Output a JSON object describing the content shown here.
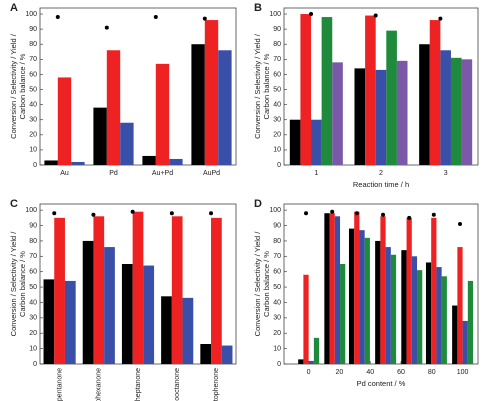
{
  "chart_data": [
    {
      "type": "bar",
      "label": "A",
      "ylabel": [
        "Conversion / Selectivity / Yield /",
        "Carbon balance / %"
      ],
      "categories": [
        "Au",
        "Pd",
        "Au+Pd",
        "AuPd"
      ],
      "series": [
        {
          "color": "#000000",
          "values": [
            3,
            38,
            6,
            80
          ]
        },
        {
          "color": "#ee2222",
          "values": [
            58,
            76,
            67,
            96
          ]
        },
        {
          "color": "#3a4fa8",
          "values": [
            2,
            28,
            4,
            76
          ]
        },
        {
          "color": "#000000",
          "marker": "dot",
          "values": [
            98,
            91,
            98,
            97
          ]
        }
      ],
      "ylim": [
        0,
        104
      ],
      "yticks": [
        0,
        10,
        20,
        30,
        40,
        50,
        60,
        70,
        80,
        90,
        100
      ]
    },
    {
      "type": "bar",
      "label": "B",
      "ylabel": [
        "Conversion / Selectivity / Yield /",
        "Carbon balance / %"
      ],
      "xlabel": "Reaction time / h",
      "categories": [
        "1",
        "2",
        "3"
      ],
      "series": [
        {
          "color": "#000000",
          "values": [
            30,
            64,
            80
          ]
        },
        {
          "color": "#ee2222",
          "values": [
            100,
            99,
            96
          ]
        },
        {
          "color": "#3a4fa8",
          "values": [
            30,
            63,
            76
          ]
        },
        {
          "color": "#1f8a3c",
          "values": [
            98,
            89,
            71
          ]
        },
        {
          "color": "#7a5aa8",
          "values": [
            68,
            69,
            70
          ]
        },
        {
          "color": "#000000",
          "marker": "dot",
          "values": [
            100,
            99,
            97
          ]
        }
      ],
      "ylim": [
        0,
        104
      ],
      "yticks": [
        0,
        10,
        20,
        30,
        40,
        50,
        60,
        70,
        80,
        90,
        100
      ]
    },
    {
      "type": "bar",
      "label": "C",
      "ylabel": [
        "Conversion / Selectivity / Yield /",
        "Carbon balance / %"
      ],
      "categories": [
        "Cyclopentanone",
        "Cyclohexanone",
        "Cycloheptanone",
        "Cyclooctanone",
        "Acetophenone"
      ],
      "rotate_labels": true,
      "series": [
        {
          "color": "#000000",
          "values": [
            55,
            80,
            65,
            44,
            13
          ]
        },
        {
          "color": "#ee2222",
          "values": [
            95,
            96,
            99,
            96,
            95
          ]
        },
        {
          "color": "#3a4fa8",
          "values": [
            54,
            76,
            64,
            43,
            12
          ]
        },
        {
          "color": "#000000",
          "marker": "dot",
          "values": [
            98,
            97,
            99,
            98,
            98
          ]
        }
      ],
      "ylim": [
        0,
        104
      ],
      "yticks": [
        0,
        10,
        20,
        30,
        40,
        50,
        60,
        70,
        80,
        90,
        100
      ]
    },
    {
      "type": "bar",
      "label": "D",
      "ylabel": [
        "Conversion / Selectivity / Yield /",
        "Carbon balance / %"
      ],
      "xlabel": "Pd content / %",
      "x": [
        0,
        17,
        33,
        50,
        67,
        83,
        100
      ],
      "series": [
        {
          "color": "#000000",
          "values": [
            3,
            98,
            88,
            80,
            74,
            66,
            38
          ]
        },
        {
          "color": "#ee2222",
          "values": [
            58,
            98,
            99,
            96,
            95,
            95,
            76
          ]
        },
        {
          "color": "#3a4fa8",
          "values": [
            2,
            96,
            87,
            76,
            70,
            63,
            28
          ]
        },
        {
          "color": "#1f8a3c",
          "values": [
            17,
            65,
            82,
            71,
            61,
            57,
            54
          ]
        },
        {
          "color": "#000000",
          "marker": "dot",
          "values": [
            98,
            99,
            98,
            97,
            95,
            97,
            91
          ]
        }
      ],
      "xlim": [
        -16,
        110
      ],
      "xticks": [
        0,
        20,
        40,
        60,
        80,
        100
      ],
      "ylim": [
        0,
        104
      ],
      "yticks": [
        0,
        10,
        20,
        30,
        40,
        50,
        60,
        70,
        80,
        90,
        100
      ]
    }
  ]
}
